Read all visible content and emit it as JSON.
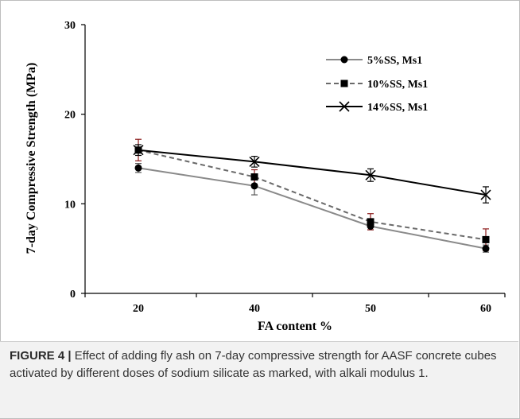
{
  "chart_data": {
    "type": "line",
    "categories": [
      "20",
      "40",
      "50",
      "60"
    ],
    "ylabel": "7-day Compressive Strength (MPa)",
    "xlabel": "FA content %",
    "ylim": [
      0,
      30
    ],
    "yticks": [
      0,
      10,
      20,
      30
    ],
    "grid": false,
    "legend_position": "top-right",
    "series": [
      {
        "name": "5%SS, Ms1",
        "values": [
          14,
          12,
          7.5,
          5
        ],
        "error": [
          0.5,
          1.0,
          0.4,
          0.4
        ],
        "marker": "circle",
        "line": "solid",
        "color": "#8a8a8a",
        "error_color": "#555555"
      },
      {
        "name": "10%SS, Ms1",
        "values": [
          16,
          13,
          8,
          6
        ],
        "error": [
          1.2,
          0.8,
          0.9,
          1.2
        ],
        "marker": "square",
        "line": "dashed",
        "color": "#6a6a6a",
        "error_color": "#8b1a1a"
      },
      {
        "name": "14%SS, Ms1",
        "values": [
          16,
          14.7,
          13.2,
          11
        ],
        "error": [
          0.6,
          0.6,
          0.7,
          0.9
        ],
        "marker": "x",
        "line": "solid",
        "color": "#000000",
        "error_color": "#000000"
      }
    ]
  },
  "caption": {
    "label": "FIGURE 4 |",
    "text": " Effect of adding fly ash on 7-day compressive strength for AASF concrete cubes activated by different doses of sodium silicate as marked, with alkali modulus 1."
  }
}
